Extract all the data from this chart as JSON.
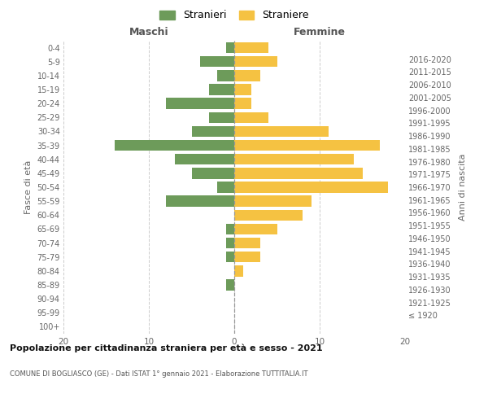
{
  "age_groups": [
    "100+",
    "95-99",
    "90-94",
    "85-89",
    "80-84",
    "75-79",
    "70-74",
    "65-69",
    "60-64",
    "55-59",
    "50-54",
    "45-49",
    "40-44",
    "35-39",
    "30-34",
    "25-29",
    "20-24",
    "15-19",
    "10-14",
    "5-9",
    "0-4"
  ],
  "birth_years": [
    "≤ 1920",
    "1921-1925",
    "1926-1930",
    "1931-1935",
    "1936-1940",
    "1941-1945",
    "1946-1950",
    "1951-1955",
    "1956-1960",
    "1961-1965",
    "1966-1970",
    "1971-1975",
    "1976-1980",
    "1981-1985",
    "1986-1990",
    "1991-1995",
    "1996-2000",
    "2001-2005",
    "2006-2010",
    "2011-2015",
    "2016-2020"
  ],
  "stranieri": [
    0,
    0,
    0,
    1,
    0,
    1,
    1,
    1,
    0,
    8,
    2,
    5,
    7,
    14,
    5,
    3,
    8,
    3,
    2,
    4,
    1
  ],
  "straniere": [
    0,
    0,
    0,
    0,
    1,
    3,
    3,
    5,
    8,
    9,
    18,
    15,
    14,
    17,
    11,
    4,
    2,
    2,
    3,
    5,
    4
  ],
  "color_stranieri": "#6d9b5a",
  "color_straniere": "#f5c242",
  "title": "Popolazione per cittadinanza straniera per età e sesso - 2021",
  "subtitle": "COMUNE DI BOGLIASCO (GE) - Dati ISTAT 1° gennaio 2021 - Elaborazione TUTTITALIA.IT",
  "ylabel_left": "Fasce di età",
  "ylabel_right": "Anni di nascita",
  "xlabel_maschi": "Maschi",
  "xlabel_femmine": "Femmine",
  "xlim": 20,
  "background_color": "#ffffff",
  "grid_color": "#cccccc"
}
